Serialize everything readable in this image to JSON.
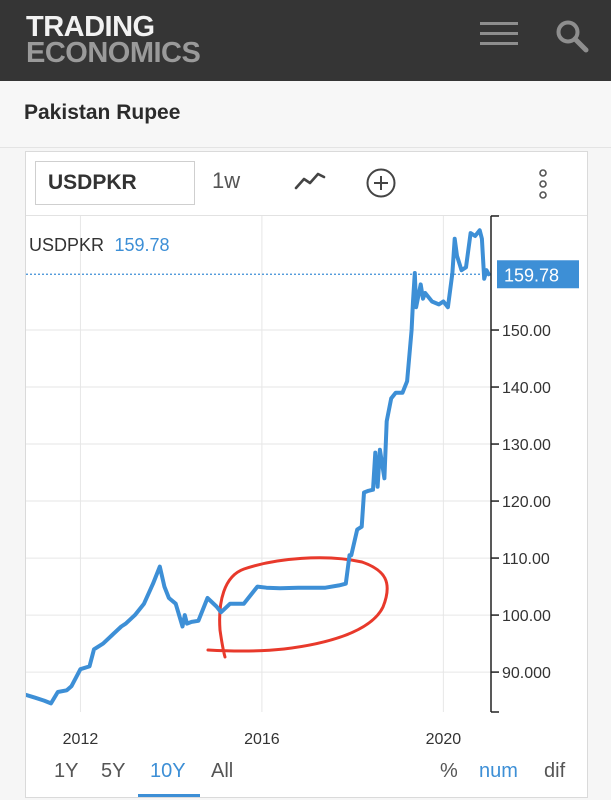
{
  "header": {
    "logo_line1": "TRADING",
    "logo_line2": "ECONOMICS",
    "menu_icon": "hamburger-menu-icon",
    "search_icon": "search-icon"
  },
  "page": {
    "title": "Pakistan Rupee"
  },
  "toolbar": {
    "symbol_value": "USDPKR",
    "interval_label": "1w",
    "chart_type_icon": "line-chart-icon",
    "compare_icon": "add-circle-icon",
    "more_icon": "vertical-dots-icon"
  },
  "legend": {
    "symbol": "USDPKR",
    "value": "159.78"
  },
  "price_badge": "159.78",
  "range_buttons": [
    "1Y",
    "5Y",
    "10Y",
    "All"
  ],
  "active_range": "10Y",
  "mode_buttons": [
    "%",
    "num",
    "dif"
  ],
  "active_mode": "num",
  "colors": {
    "line": "#3d8fd6",
    "accent": "#3d8fd6",
    "annotation": "#e8392b",
    "header_bg": "#353535"
  },
  "chart_data": {
    "type": "line",
    "ylim": [
      83,
      170
    ],
    "yticks": [
      90,
      100,
      110,
      120,
      130,
      140,
      150
    ],
    "ytick_labels": [
      "90.000",
      "100.00",
      "110.00",
      "120.00",
      "130.00",
      "140.00",
      "150.00"
    ],
    "xlim": [
      2010.8,
      2021.05
    ],
    "xticks": [
      2012,
      2016,
      2020
    ],
    "xtick_labels": [
      "2012",
      "2016",
      "2020"
    ],
    "grid": true,
    "current_value": 159.78,
    "series": [
      {
        "x": [
          2010.8,
          2011.0,
          2011.2,
          2011.35,
          2011.5,
          2011.7,
          2011.8,
          2012.0,
          2012.2,
          2012.3,
          2012.5,
          2012.7,
          2012.9,
          2013.0,
          2013.2,
          2013.4,
          2013.6,
          2013.75,
          2013.85,
          2013.95,
          2014.1,
          2014.25,
          2014.3,
          2014.35,
          2014.45,
          2014.6,
          2014.8,
          2015.0,
          2015.1,
          2015.3,
          2015.6,
          2015.9,
          2016.1,
          2016.4,
          2016.8,
          2017.0,
          2017.4,
          2017.7,
          2017.85,
          2017.93,
          2017.97,
          2018.1,
          2018.2,
          2018.25,
          2018.35,
          2018.45,
          2018.5,
          2018.55,
          2018.6,
          2018.7,
          2018.75,
          2018.85,
          2018.95,
          2019.1,
          2019.2,
          2019.3,
          2019.33,
          2019.37,
          2019.4,
          2019.5,
          2019.55,
          2019.6,
          2019.75,
          2019.9,
          2020.0,
          2020.1,
          2020.2,
          2020.25,
          2020.3,
          2020.4,
          2020.5,
          2020.6,
          2020.7,
          2020.8,
          2020.85,
          2020.9,
          2020.95,
          2021.0
        ],
        "y": [
          86.0,
          85.5,
          85.0,
          84.5,
          86.5,
          86.8,
          87.5,
          90.5,
          91.0,
          94.0,
          95.0,
          96.5,
          98.0,
          98.5,
          100.0,
          102.0,
          105.5,
          108.5,
          105.0,
          103.0,
          102.0,
          98.0,
          100.0,
          98.5,
          98.8,
          99.0,
          103.0,
          101.5,
          100.5,
          102.0,
          102.0,
          105.0,
          104.8,
          104.7,
          104.8,
          104.8,
          104.8,
          105.2,
          105.5,
          110.5,
          110.5,
          115.0,
          115.5,
          121.5,
          121.8,
          122.0,
          128.5,
          122.5,
          129.0,
          124.0,
          134.0,
          138.0,
          139.0,
          139.0,
          141.0,
          150.0,
          155.0,
          160.0,
          154.0,
          158.0,
          155.5,
          156.5,
          155.0,
          154.5,
          155.0,
          154.0,
          160.0,
          166.0,
          163.0,
          160.5,
          161.0,
          167.0,
          166.5,
          167.5,
          166.0,
          159.0,
          160.5,
          159.78
        ]
      }
    ]
  }
}
